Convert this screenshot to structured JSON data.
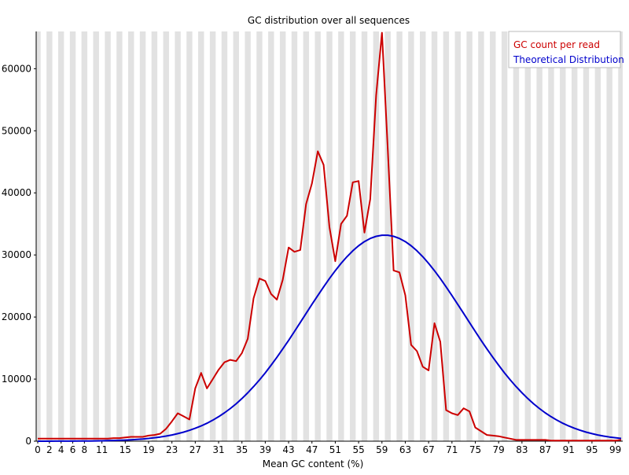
{
  "chart_data": {
    "type": "line",
    "title": "GC distribution over all sequences",
    "xlabel": "Mean GC content (%)",
    "ylabel": "",
    "x": [
      0,
      1,
      2,
      3,
      4,
      5,
      6,
      7,
      8,
      9,
      10,
      11,
      12,
      13,
      14,
      15,
      16,
      17,
      18,
      19,
      20,
      21,
      22,
      23,
      24,
      25,
      26,
      27,
      28,
      29,
      30,
      31,
      32,
      33,
      34,
      35,
      36,
      37,
      38,
      39,
      40,
      41,
      42,
      43,
      44,
      45,
      46,
      47,
      48,
      49,
      50,
      51,
      52,
      53,
      54,
      55,
      56,
      57,
      58,
      59,
      60,
      61,
      62,
      63,
      64,
      65,
      66,
      67,
      68,
      69,
      70,
      71,
      72,
      73,
      74,
      75,
      76,
      77,
      78,
      79,
      80,
      81,
      82,
      83,
      84,
      85,
      86,
      87,
      88,
      89,
      90,
      91,
      92,
      93,
      94,
      95,
      96,
      97,
      98,
      99,
      100
    ],
    "x_tick_labels": [
      "0",
      "2",
      "4",
      "6",
      "8",
      "11",
      "15",
      "19",
      "23",
      "27",
      "31",
      "35",
      "39",
      "43",
      "47",
      "51",
      "55",
      "59",
      "63",
      "67",
      "71",
      "75",
      "79",
      "83",
      "87",
      "91",
      "95",
      "99"
    ],
    "y_ticks": [
      0,
      10000,
      20000,
      30000,
      40000,
      50000,
      60000
    ],
    "ylim": [
      0,
      66000
    ],
    "grid": "alternating vertical bands",
    "legend_position": "top-right",
    "series": [
      {
        "name": "GC count per read",
        "color": "#cc0000",
        "values": [
          400,
          400,
          400,
          400,
          400,
          400,
          400,
          400,
          400,
          400,
          400,
          400,
          400,
          500,
          500,
          600,
          700,
          700,
          700,
          900,
          1000,
          1200,
          2000,
          3200,
          4500,
          4000,
          3500,
          8500,
          11000,
          8500,
          10000,
          11500,
          12700,
          13100,
          12900,
          14200,
          16500,
          23000,
          26200,
          25800,
          23700,
          22800,
          26000,
          31200,
          30500,
          30800,
          38200,
          41500,
          46700,
          44500,
          34500,
          29000,
          35000,
          36300,
          41700,
          41900,
          33600,
          39000,
          55700,
          65800,
          47000,
          27500,
          27200,
          23500,
          15500,
          14500,
          12000,
          11400,
          19000,
          16000,
          5000,
          4500,
          4200,
          5300,
          4800,
          2200,
          1600,
          1000,
          900,
          800,
          600,
          400,
          200,
          200,
          200,
          200,
          200,
          200,
          100,
          100,
          100,
          100,
          100,
          100,
          100,
          100,
          100,
          100,
          100,
          100,
          200
        ],
        "x_range": [
          0,
          100
        ]
      },
      {
        "name": "Theoretical Distribution",
        "color": "#0000cc",
        "mean": 59.5,
        "sd": 13.8,
        "peak": 33200
      }
    ]
  }
}
